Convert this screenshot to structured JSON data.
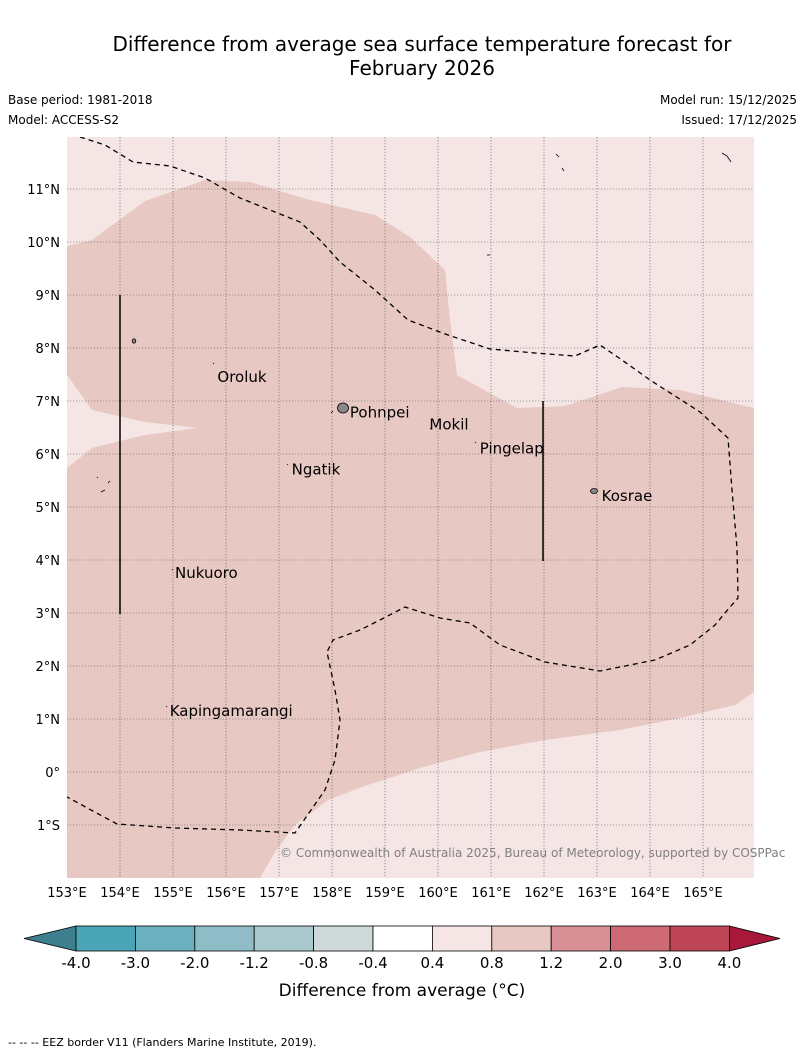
{
  "title": {
    "line1": "Difference from average sea surface temperature forecast for",
    "line2": "February 2026"
  },
  "meta": {
    "base_period": "Base period: 1981-2018",
    "model": "Model: ACCESS-S2",
    "model_run": "Model run: 15/12/2025",
    "issued": "Issued: 17/12/2025"
  },
  "map": {
    "lat_labels": [
      "11°N",
      "10°N",
      "9°N",
      "8°N",
      "7°N",
      "6°N",
      "5°N",
      "4°N",
      "3°N",
      "2°N",
      "1°N",
      "0°",
      "1°S"
    ],
    "lon_labels": [
      "153°E",
      "154°E",
      "155°E",
      "156°E",
      "157°E",
      "158°E",
      "159°E",
      "160°E",
      "161°E",
      "162°E",
      "163°E",
      "164°E",
      "165°E"
    ],
    "places": [
      {
        "name": "Oroluk",
        "lon": 155.8,
        "lat": 7.55
      },
      {
        "name": "Pohnpei",
        "lon": 158.3,
        "lat": 6.88
      },
      {
        "name": "Mokil",
        "lon": 159.8,
        "lat": 6.65
      },
      {
        "name": "Pingelap",
        "lon": 160.75,
        "lat": 6.2
      },
      {
        "name": "Ngatik",
        "lon": 157.2,
        "lat": 5.8
      },
      {
        "name": "Kosrae",
        "lon": 163.05,
        "lat": 5.3
      },
      {
        "name": "Nukuoro",
        "lon": 155.0,
        "lat": 3.85
      },
      {
        "name": "Kapingamarangi",
        "lon": 154.9,
        "lat": 1.25
      }
    ],
    "copyright": "© Commonwealth of Australia 2025, Bureau of Meteorology, supported by COSPPac",
    "colors": {
      "band_0p4_0p8": "#f5e6e5",
      "band_0p8_1p2": "#e8c8c3"
    }
  },
  "colorbar": {
    "ticks": [
      "-4.0",
      "-3.0",
      "-2.0",
      "-1.2",
      "-0.8",
      "-0.4",
      "0.4",
      "0.8",
      "1.2",
      "2.0",
      "3.0",
      "4.0"
    ],
    "colors": [
      "#3d7f8f",
      "#4aa5b5",
      "#6cb1c0",
      "#8fbcc7",
      "#aac9cc",
      "#d0d9da",
      "#ffffff",
      "#f5e6e5",
      "#e8c8c3",
      "#d98f96",
      "#cd6a74",
      "#be4656",
      "#a8183a"
    ],
    "title": "Difference from average (°C)"
  },
  "footer": "--  --  -- EEZ border V11 (Flanders Marine Institute, 2019)."
}
